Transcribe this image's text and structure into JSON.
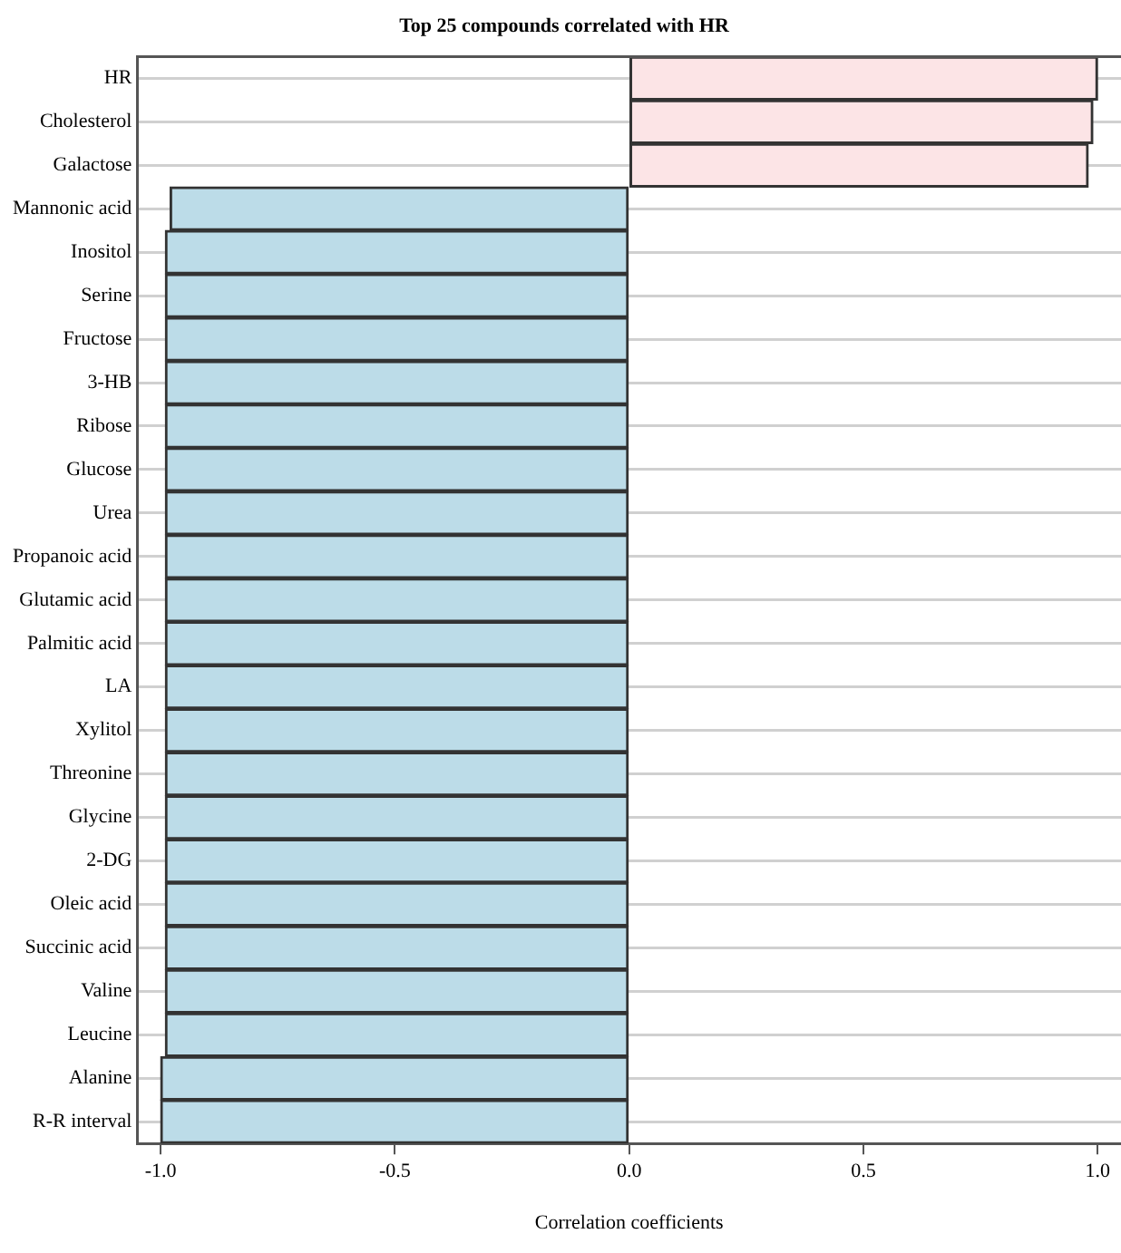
{
  "chart_data": {
    "type": "bar",
    "orientation": "horizontal",
    "title": "Top 25 compounds correlated with HR",
    "xlabel": "Correlation coefficients",
    "categories": [
      "HR",
      "Cholesterol",
      "Galactose",
      "Mannonic acid",
      "Inositol",
      "Serine",
      "Fructose",
      "3-HB",
      "Ribose",
      "Glucose",
      "Urea",
      "Propanoic acid",
      "Glutamic acid",
      "Palmitic acid",
      "LA",
      "Xylitol",
      "Threonine",
      "Glycine",
      "2-DG",
      "Oleic acid",
      "Succinic acid",
      "Valine",
      "Leucine",
      "Alanine",
      "R-R interval"
    ],
    "values": [
      1.0,
      0.99,
      0.98,
      -0.98,
      -0.99,
      -0.99,
      -0.99,
      -0.99,
      -0.99,
      -0.99,
      -0.99,
      -0.99,
      -0.99,
      -0.99,
      -0.99,
      -0.99,
      -0.99,
      -0.99,
      -0.99,
      -0.99,
      -0.99,
      -0.99,
      -0.99,
      -1.0,
      -1.0
    ],
    "colors": [
      "#fce4e6",
      "#fce4e6",
      "#fce4e6",
      "#bcdce8",
      "#bcdce8",
      "#bcdce8",
      "#bcdce8",
      "#bcdce8",
      "#bcdce8",
      "#bcdce8",
      "#bcdce8",
      "#bcdce8",
      "#bcdce8",
      "#bcdce8",
      "#bcdce8",
      "#bcdce8",
      "#bcdce8",
      "#bcdce8",
      "#bcdce8",
      "#bcdce8",
      "#bcdce8",
      "#bcdce8",
      "#bcdce8",
      "#bcdce8",
      "#bcdce8"
    ],
    "xlim": [
      -1.05,
      1.05
    ],
    "xticks": [
      {
        "value": -1,
        "label": "-1.0"
      },
      {
        "value": -0.5,
        "label": "-0.5"
      },
      {
        "value": 0,
        "label": "0.0"
      },
      {
        "value": 0.5,
        "label": "0.5"
      },
      {
        "value": 1,
        "label": "1.0"
      }
    ],
    "grid": "y",
    "legend": false
  }
}
